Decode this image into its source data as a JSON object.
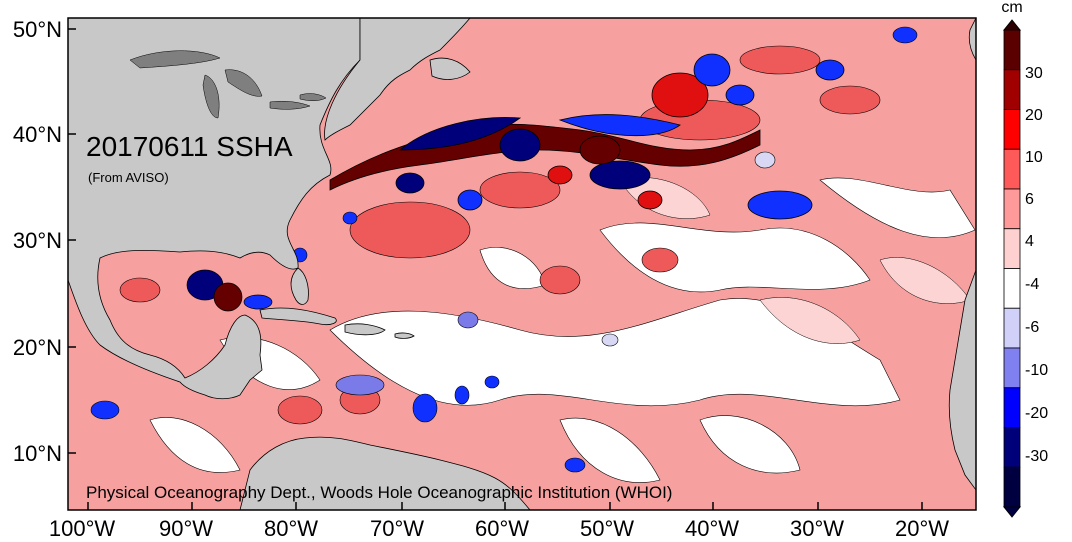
{
  "map": {
    "title": "20170611 SSHA",
    "source": "(From AVISO)",
    "credit": "Physical Oceanography Dept., Woods Hole Oceanographic Institution (WHOI)",
    "lat_labels": [
      "50°N",
      "40°N",
      "30°N",
      "20°N",
      "10°N"
    ],
    "lon_labels": [
      "100°W",
      "90°W",
      "80°W",
      "70°W",
      "60°W",
      "50°W",
      "40°W",
      "30°W",
      "20°W"
    ],
    "colors": {
      "land": "#c8c8c8",
      "ocean_neutral": "#ffffff",
      "pos_light": "#fdd4d4",
      "pos_mid": "#f5908f",
      "pos_strong": "#ee5a5a",
      "pos_max": "#e01010",
      "pos_dark": "#650000",
      "neg_light": "#d8d8f5",
      "neg_mid": "#7a7ae8",
      "neg_strong": "#1030ff",
      "neg_dark": "#00007a"
    }
  },
  "colorbar": {
    "unit": "cm",
    "labels": [
      "30",
      "20",
      "10",
      "6",
      "4",
      "-4",
      "-6",
      "-10",
      "-20",
      "-30"
    ],
    "colors": [
      "#5a0000",
      "#a00000",
      "#ff0000",
      "#ff5a5a",
      "#ff9a9a",
      "#ffd0d0",
      "#ffffff",
      "#d0d0f8",
      "#8080f0",
      "#0000ff",
      "#00007a",
      "#000040"
    ]
  }
}
